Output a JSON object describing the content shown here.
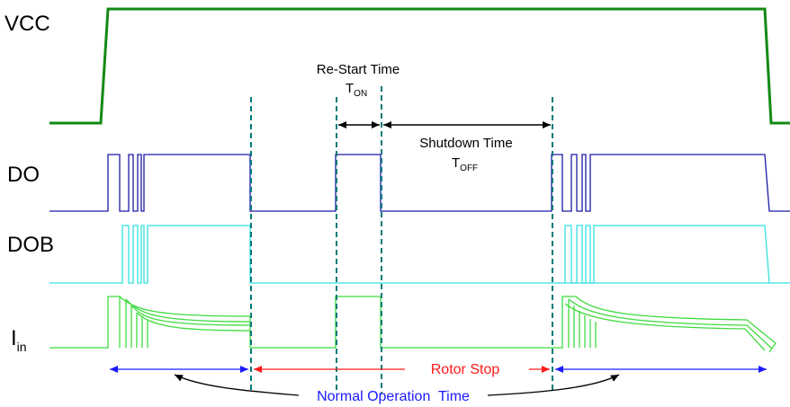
{
  "signals": {
    "vcc": {
      "label": "VCC",
      "color": "#138a13"
    },
    "do": {
      "label": "DO",
      "color": "#1a1aa6"
    },
    "dob": {
      "label": "DOB",
      "color": "#33e0e0"
    },
    "iin": {
      "label": "I",
      "sub": "in",
      "color": "#3fdc3f"
    }
  },
  "annotations": {
    "restart": {
      "title": "Re-Start Time",
      "symbol": "T",
      "sub": "ON"
    },
    "shutdown": {
      "title": "Shutdown Time",
      "symbol": "T",
      "sub": "OFF"
    },
    "rotor_stop": "Rotor Stop",
    "normal_operation": "Normal Operation  Time"
  },
  "colors": {
    "marker": "#007a7a",
    "blue_arrow": "#1a1aff",
    "red_arrow": "#ff1a1a",
    "black": "#000000",
    "normal_text": "#1a1aff",
    "rotor_text": "#ff1a1a"
  }
}
